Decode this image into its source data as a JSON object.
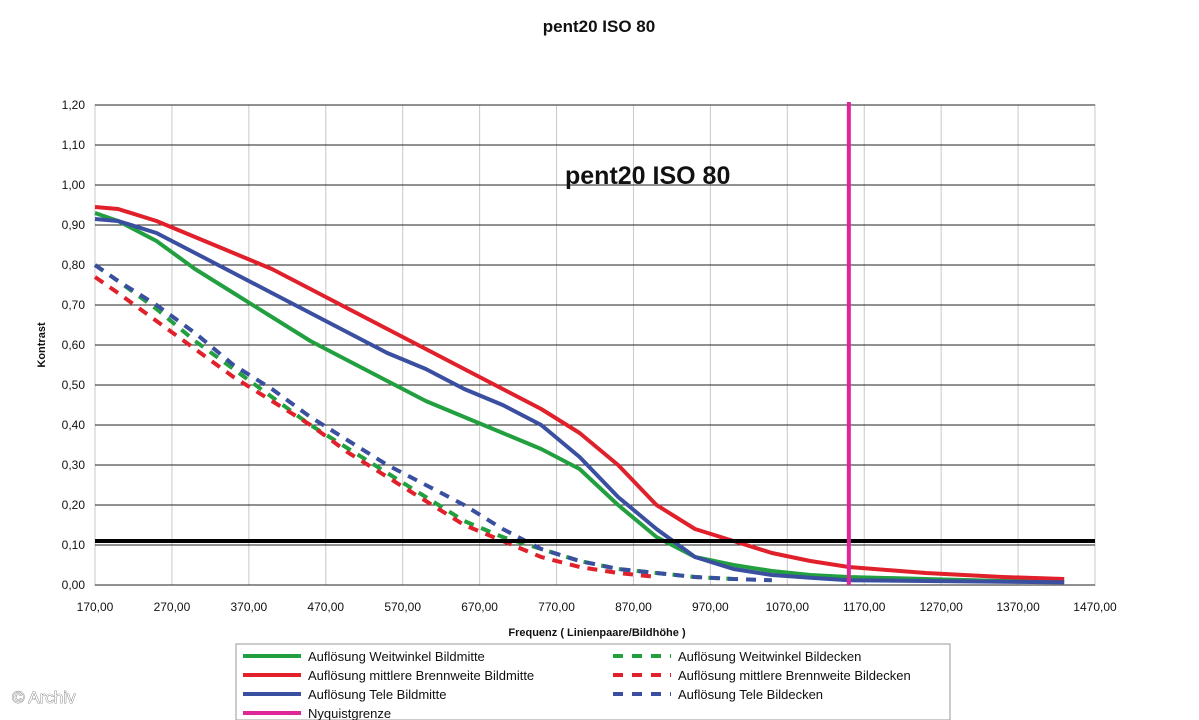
{
  "chart_data": {
    "type": "line",
    "title": "pent20 ISO 80",
    "inner_title": "pent20 ISO 80",
    "xlabel": "Frequenz ( Linienpaare/Bildhöhe )",
    "ylabel": "Kontrast",
    "xlim": [
      170,
      1470
    ],
    "ylim": [
      0,
      1.2
    ],
    "x_ticks": [
      "170,00",
      "270,00",
      "370,00",
      "470,00",
      "570,00",
      "670,00",
      "770,00",
      "870,00",
      "970,00",
      "1070,00",
      "1170,00",
      "1270,00",
      "1370,00",
      "1470,00"
    ],
    "y_ticks": [
      "0,00",
      "0,10",
      "0,20",
      "0,30",
      "0,40",
      "0,50",
      "0,60",
      "0,70",
      "0,80",
      "0,90",
      "1,00",
      "1,10",
      "1,20"
    ],
    "grid": true,
    "legend_position": "bottom",
    "threshold_line": {
      "y": 0.11,
      "color": "#000000"
    },
    "nyquist_line": {
      "x": 1150,
      "color": "#e0259a",
      "name": "Nyquistgrenze"
    },
    "series": [
      {
        "name": "Auflösung Weitwinkel Bildmitte",
        "color": "#22a040",
        "style": "solid",
        "points": [
          [
            170,
            0.93
          ],
          [
            200,
            0.91
          ],
          [
            250,
            0.86
          ],
          [
            300,
            0.79
          ],
          [
            350,
            0.73
          ],
          [
            400,
            0.67
          ],
          [
            450,
            0.61
          ],
          [
            500,
            0.56
          ],
          [
            550,
            0.51
          ],
          [
            600,
            0.46
          ],
          [
            650,
            0.42
          ],
          [
            700,
            0.38
          ],
          [
            750,
            0.34
          ],
          [
            800,
            0.29
          ],
          [
            850,
            0.2
          ],
          [
            900,
            0.12
          ],
          [
            950,
            0.07
          ],
          [
            1000,
            0.05
          ],
          [
            1050,
            0.035
          ],
          [
            1100,
            0.025
          ],
          [
            1150,
            0.02
          ],
          [
            1250,
            0.015
          ],
          [
            1350,
            0.01
          ],
          [
            1430,
            0.008
          ]
        ]
      },
      {
        "name": "Auflösung mittlere Brennweite Bildmitte",
        "color": "#e0202a",
        "style": "solid",
        "points": [
          [
            170,
            0.945
          ],
          [
            200,
            0.94
          ],
          [
            250,
            0.91
          ],
          [
            300,
            0.87
          ],
          [
            350,
            0.83
          ],
          [
            400,
            0.79
          ],
          [
            450,
            0.74
          ],
          [
            500,
            0.69
          ],
          [
            550,
            0.64
          ],
          [
            600,
            0.59
          ],
          [
            650,
            0.54
          ],
          [
            700,
            0.49
          ],
          [
            750,
            0.44
          ],
          [
            800,
            0.38
          ],
          [
            850,
            0.3
          ],
          [
            900,
            0.2
          ],
          [
            950,
            0.14
          ],
          [
            1000,
            0.11
          ],
          [
            1050,
            0.08
          ],
          [
            1100,
            0.06
          ],
          [
            1150,
            0.045
          ],
          [
            1250,
            0.03
          ],
          [
            1350,
            0.02
          ],
          [
            1430,
            0.015
          ]
        ]
      },
      {
        "name": "Auflösung Tele Bildmitte",
        "color": "#3a4fa0",
        "style": "solid",
        "points": [
          [
            170,
            0.915
          ],
          [
            200,
            0.91
          ],
          [
            250,
            0.88
          ],
          [
            300,
            0.83
          ],
          [
            350,
            0.78
          ],
          [
            400,
            0.73
          ],
          [
            450,
            0.68
          ],
          [
            500,
            0.63
          ],
          [
            550,
            0.58
          ],
          [
            600,
            0.54
          ],
          [
            650,
            0.49
          ],
          [
            700,
            0.45
          ],
          [
            750,
            0.4
          ],
          [
            800,
            0.32
          ],
          [
            850,
            0.22
          ],
          [
            900,
            0.14
          ],
          [
            950,
            0.07
          ],
          [
            1000,
            0.04
          ],
          [
            1050,
            0.025
          ],
          [
            1100,
            0.018
          ],
          [
            1150,
            0.012
          ],
          [
            1250,
            0.01
          ],
          [
            1350,
            0.008
          ],
          [
            1430,
            0.007
          ]
        ]
      },
      {
        "name": "Auflösung Weitwinkel Bildecken",
        "color": "#22a040",
        "style": "dashed",
        "points": [
          [
            170,
            0.8
          ],
          [
            200,
            0.76
          ],
          [
            250,
            0.69
          ],
          [
            300,
            0.61
          ],
          [
            350,
            0.54
          ],
          [
            400,
            0.47
          ],
          [
            450,
            0.4
          ],
          [
            500,
            0.34
          ],
          [
            550,
            0.28
          ],
          [
            600,
            0.22
          ],
          [
            650,
            0.16
          ],
          [
            700,
            0.12
          ],
          [
            750,
            0.09
          ],
          [
            800,
            0.06
          ],
          [
            850,
            0.04
          ],
          [
            900,
            0.03
          ],
          [
            950,
            0.02
          ],
          [
            1000,
            0.015
          ]
        ]
      },
      {
        "name": "Auflösung mittlere Brennweite Bildecken",
        "color": "#e0202a",
        "style": "dashed",
        "points": [
          [
            170,
            0.77
          ],
          [
            200,
            0.73
          ],
          [
            250,
            0.66
          ],
          [
            300,
            0.59
          ],
          [
            350,
            0.52
          ],
          [
            400,
            0.46
          ],
          [
            450,
            0.4
          ],
          [
            500,
            0.33
          ],
          [
            550,
            0.27
          ],
          [
            600,
            0.21
          ],
          [
            650,
            0.15
          ],
          [
            700,
            0.11
          ],
          [
            750,
            0.07
          ],
          [
            800,
            0.045
          ],
          [
            850,
            0.03
          ],
          [
            900,
            0.02
          ]
        ]
      },
      {
        "name": "Auflösung Tele Bildecken",
        "color": "#3a4fa0",
        "style": "dashed",
        "points": [
          [
            170,
            0.8
          ],
          [
            200,
            0.76
          ],
          [
            250,
            0.7
          ],
          [
            300,
            0.63
          ],
          [
            350,
            0.55
          ],
          [
            400,
            0.49
          ],
          [
            450,
            0.42
          ],
          [
            500,
            0.36
          ],
          [
            550,
            0.3
          ],
          [
            600,
            0.25
          ],
          [
            650,
            0.2
          ],
          [
            700,
            0.14
          ],
          [
            750,
            0.09
          ],
          [
            800,
            0.06
          ],
          [
            850,
            0.04
          ],
          [
            900,
            0.03
          ],
          [
            950,
            0.02
          ],
          [
            1000,
            0.015
          ],
          [
            1050,
            0.012
          ]
        ]
      }
    ],
    "legend": [
      {
        "label": "Auflösung Weitwinkel Bildmitte",
        "color": "#22a040",
        "style": "solid"
      },
      {
        "label": "Auflösung Weitwinkel Bildecken",
        "color": "#22a040",
        "style": "dashed"
      },
      {
        "label": "Auflösung mittlere Brennweite Bildmitte",
        "color": "#e0202a",
        "style": "solid"
      },
      {
        "label": "Auflösung mittlere Brennweite Bildecken",
        "color": "#e0202a",
        "style": "dashed"
      },
      {
        "label": "Auflösung Tele Bildmitte",
        "color": "#3a4fa0",
        "style": "solid"
      },
      {
        "label": "Auflösung Tele Bildecken",
        "color": "#3a4fa0",
        "style": "dashed"
      },
      {
        "label": "Nyquistgrenze",
        "color": "#e0259a",
        "style": "solid"
      }
    ]
  },
  "copyright": "© Archiv"
}
